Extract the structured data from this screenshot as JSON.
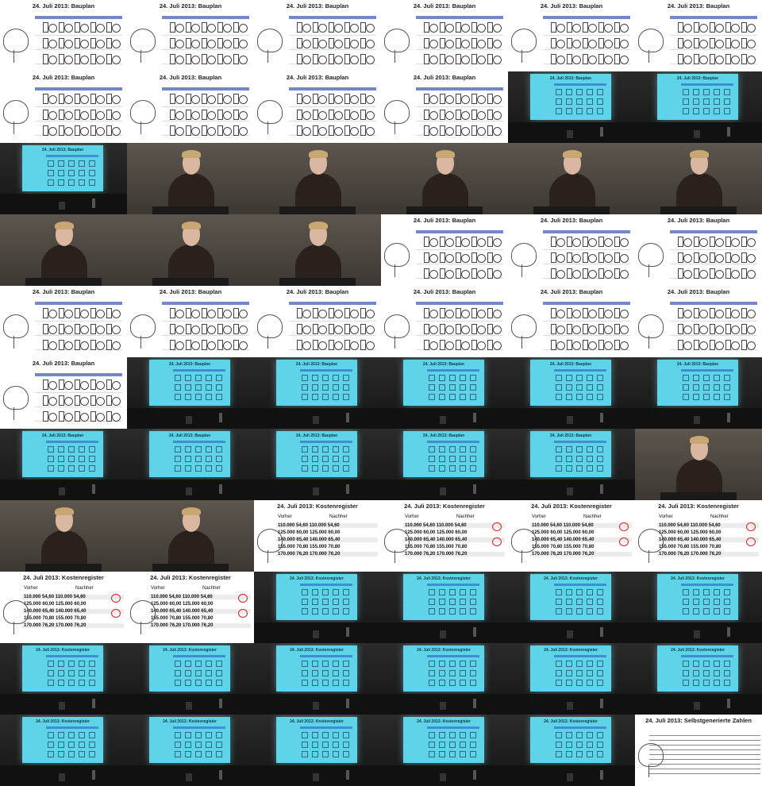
{
  "slide_titles": {
    "bauplan": "24. Juli 2013: Bauplan",
    "kostenregister": "24. Juli 2013: Kostenregister",
    "zahlen": "24. Juli 2013: Selbstgenerierte Zahlen"
  },
  "cost_table": {
    "header_before": "Vorher",
    "header_after": "Nachher",
    "rows": [
      [
        "110.000",
        "54,60",
        "110.000",
        "54,60"
      ],
      [
        "125.000",
        "60,00",
        "125.000",
        "60,00"
      ],
      [
        "140.000",
        "65,40",
        "140.000",
        "65,40"
      ],
      [
        "155.000",
        "70,80",
        "155.000",
        "70,80"
      ],
      [
        "170.000",
        "76,20",
        "170.000",
        "76,20"
      ]
    ]
  },
  "frames": [
    "bauplan",
    "bauplan",
    "bauplan",
    "bauplan",
    "bauplan",
    "bauplan",
    "bauplan",
    "bauplan",
    "bauplan",
    "bauplan",
    "proj-bauplan",
    "proj-bauplan",
    "proj-bauplan",
    "speaker",
    "speaker",
    "speaker",
    "speaker",
    "speaker",
    "speaker",
    "speaker",
    "speaker",
    "bauplan",
    "bauplan",
    "bauplan",
    "bauplan",
    "bauplan",
    "bauplan",
    "bauplan",
    "bauplan",
    "bauplan",
    "bauplan",
    "proj-bauplan",
    "proj-bauplan",
    "proj-bauplan",
    "proj-bauplan",
    "proj-bauplan",
    "proj-bauplan",
    "proj-bauplan",
    "proj-bauplan",
    "proj-bauplan",
    "proj-bauplan",
    "speaker",
    "speaker",
    "speaker",
    "cost",
    "cost",
    "cost",
    "cost",
    "cost",
    "cost",
    "proj-cost",
    "proj-cost",
    "proj-cost",
    "proj-cost",
    "proj-cost",
    "proj-cost",
    "proj-cost",
    "proj-cost",
    "proj-cost",
    "proj-cost",
    "proj-cost",
    "proj-cost",
    "proj-cost",
    "proj-cost",
    "proj-cost",
    "zahlen"
  ]
}
